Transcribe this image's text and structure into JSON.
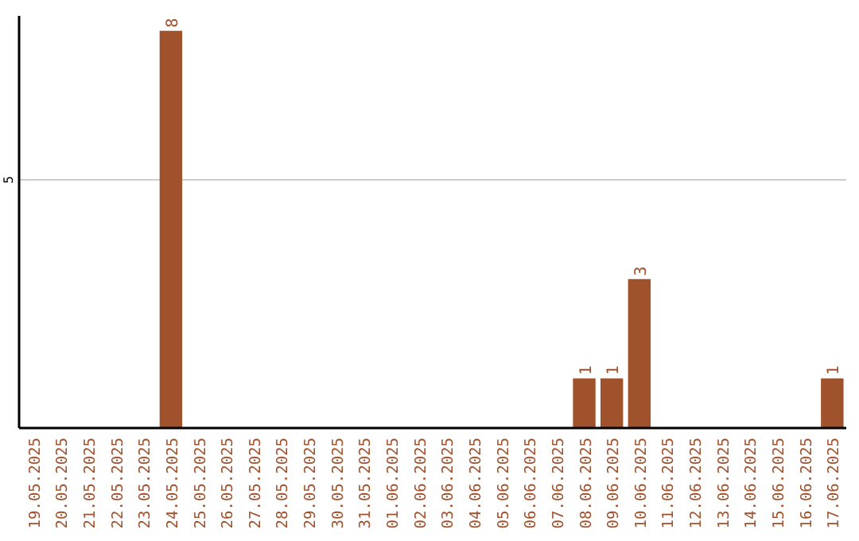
{
  "chart_data": {
    "type": "bar",
    "categories": [
      "19.05.2025",
      "20.05.2025",
      "21.05.2025",
      "22.05.2025",
      "23.05.2025",
      "24.05.2025",
      "25.05.2025",
      "26.05.2025",
      "27.05.2025",
      "28.05.2025",
      "29.05.2025",
      "30.05.2025",
      "31.05.2025",
      "01.06.2025",
      "02.06.2025",
      "03.06.2025",
      "04.06.2025",
      "05.06.2025",
      "06.06.2025",
      "07.06.2025",
      "08.06.2025",
      "09.06.2025",
      "10.06.2025",
      "11.06.2025",
      "12.06.2025",
      "13.06.2025",
      "14.06.2025",
      "15.06.2025",
      "16.06.2025",
      "17.06.2025"
    ],
    "values": [
      0,
      0,
      0,
      0,
      0,
      8,
      0,
      0,
      0,
      0,
      0,
      0,
      0,
      0,
      0,
      0,
      0,
      0,
      0,
      0,
      1,
      1,
      3,
      0,
      0,
      0,
      0,
      0,
      0,
      1
    ],
    "value_labels": [
      null,
      null,
      null,
      null,
      null,
      "8",
      null,
      null,
      null,
      null,
      null,
      null,
      null,
      null,
      null,
      null,
      null,
      null,
      null,
      null,
      "1",
      "1",
      "3",
      null,
      null,
      null,
      null,
      null,
      null,
      "1"
    ],
    "color": "#a0522d",
    "ylim": [
      0,
      8.3
    ],
    "yticks": [
      5
    ],
    "grid": "y"
  }
}
